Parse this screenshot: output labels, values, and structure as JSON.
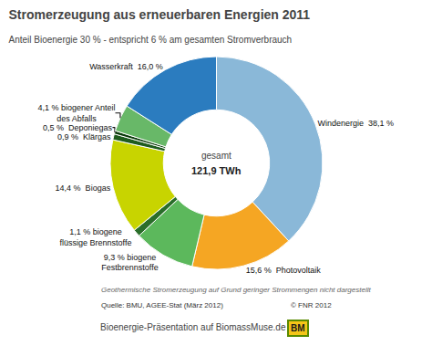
{
  "chart_data": {
    "type": "pie",
    "title": "Stromerzeugung aus erneuerbaren Energien 2011",
    "subtitle": "Anteil Bioenergie 30 % - entspricht 6 % am gesamten Stromverbrauch",
    "values": [
      38.1,
      15.6,
      9.3,
      1.1,
      14.4,
      0.9,
      0.5,
      4.1,
      16.0
    ],
    "value_labels": [
      "Windenergie  38,1 %",
      "15,6 %  Photovoltaik",
      "9,3 % biogene\nFestbrennstoffe",
      "1,1 % biogene\nflüssige Brennstoffe",
      "14,4 %  Biogas",
      "0,9 %  Klärgas",
      "0,5 %  Deponiegas",
      "4,1 % biogener Anteil\ndes Abfalls",
      "Wasserkraft  16,0 %"
    ],
    "colors": [
      "#8ab8d8",
      "#f5a623",
      "#5cb85c",
      "#2a6e2a",
      "#c8d400",
      "#1e5c1e",
      "#0a3a0a",
      "#68b868",
      "#2b7cbf"
    ],
    "data_labels": true,
    "center_text": [
      "gesamt",
      "121,9 TWh"
    ],
    "notes": [
      "Geothermische Stromerzeugung auf Grund geringer Strommengen nicht dargestellt",
      "Quelle: BMU, AGEE-Stat (März 2012)",
      "© FNR 2012"
    ],
    "bottom_text": "Bioenergie-Präsentation auf BiomassMuse.de",
    "logo_text": "BM"
  }
}
